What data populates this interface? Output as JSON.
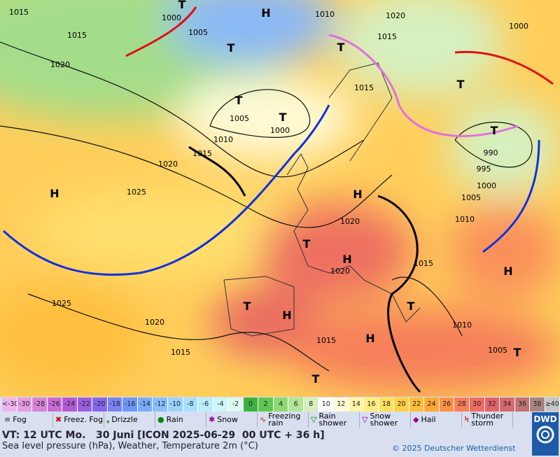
{
  "map": {
    "pressure_labels": [
      "1015",
      "1000",
      "1005",
      "1010",
      "1020",
      "1015",
      "1000",
      "1015",
      "1020",
      "1015",
      "1005",
      "1000",
      "1010",
      "1015",
      "1020",
      "1025",
      "990",
      "995",
      "1000",
      "1005",
      "1010",
      "1020",
      "1015",
      "1020",
      "1025",
      "1020",
      "1010",
      "1005",
      "1015",
      "1015"
    ],
    "systems": [
      "H",
      "H",
      "H",
      "H",
      "H",
      "H",
      "H",
      "T",
      "T",
      "T",
      "T",
      "T",
      "T",
      "T",
      "T",
      "T",
      "T",
      "T",
      "T"
    ]
  },
  "temperature_scale": {
    "labels": [
      "<-30",
      "-30",
      "-28",
      "-26",
      "-24",
      "-22",
      "-20",
      "-18",
      "-16",
      "-14",
      "-12",
      "-10",
      "-8",
      "-6",
      "-4",
      "-2",
      "0",
      "2",
      "4",
      "6",
      "8",
      "10",
      "12",
      "14",
      "16",
      "18",
      "20",
      "22",
      "24",
      "26",
      "28",
      "30",
      "32",
      "34",
      "36",
      "38",
      "≥40 °C"
    ],
    "colors": [
      "#eeb4ee",
      "#e39be3",
      "#d784d7",
      "#c76cd4",
      "#b35ad6",
      "#9c5ee0",
      "#8667ec",
      "#7684f4",
      "#6f97f7",
      "#79adfb",
      "#89c1fd",
      "#9bd3fe",
      "#a9e0ff",
      "#baeeff",
      "#cdf7fb",
      "#def9f2",
      "#3cb043",
      "#5cc84f",
      "#8cd872",
      "#b2e596",
      "#d6f0c0",
      "#ffffff",
      "#fffbd6",
      "#fff5a8",
      "#ffec80",
      "#ffdf5e",
      "#ffd045",
      "#ffbe3c",
      "#ffa837",
      "#fd9148",
      "#f97e57",
      "#f06d62",
      "#e4626a",
      "#d66a6e",
      "#c27475",
      "#a88584",
      "#c6c6c6"
    ]
  },
  "weather_legend": [
    "Fog",
    "Freez. Fog",
    "Drizzle",
    "Rain",
    "Snow",
    "Freezing rain",
    "Rain shower",
    "Snow shower",
    "Hail",
    "Thunder storm"
  ],
  "footer": {
    "valid_time": "VT: 12 UTC Mo.   30 Juni [ICON 2025-06-29  00 UTC + 36 h]",
    "description": "Sea level pressure (hPa), Weather, Temperature 2m (°C)",
    "copyright": "© 2025 Deutscher Wetterdienst",
    "logo": "DWD"
  }
}
